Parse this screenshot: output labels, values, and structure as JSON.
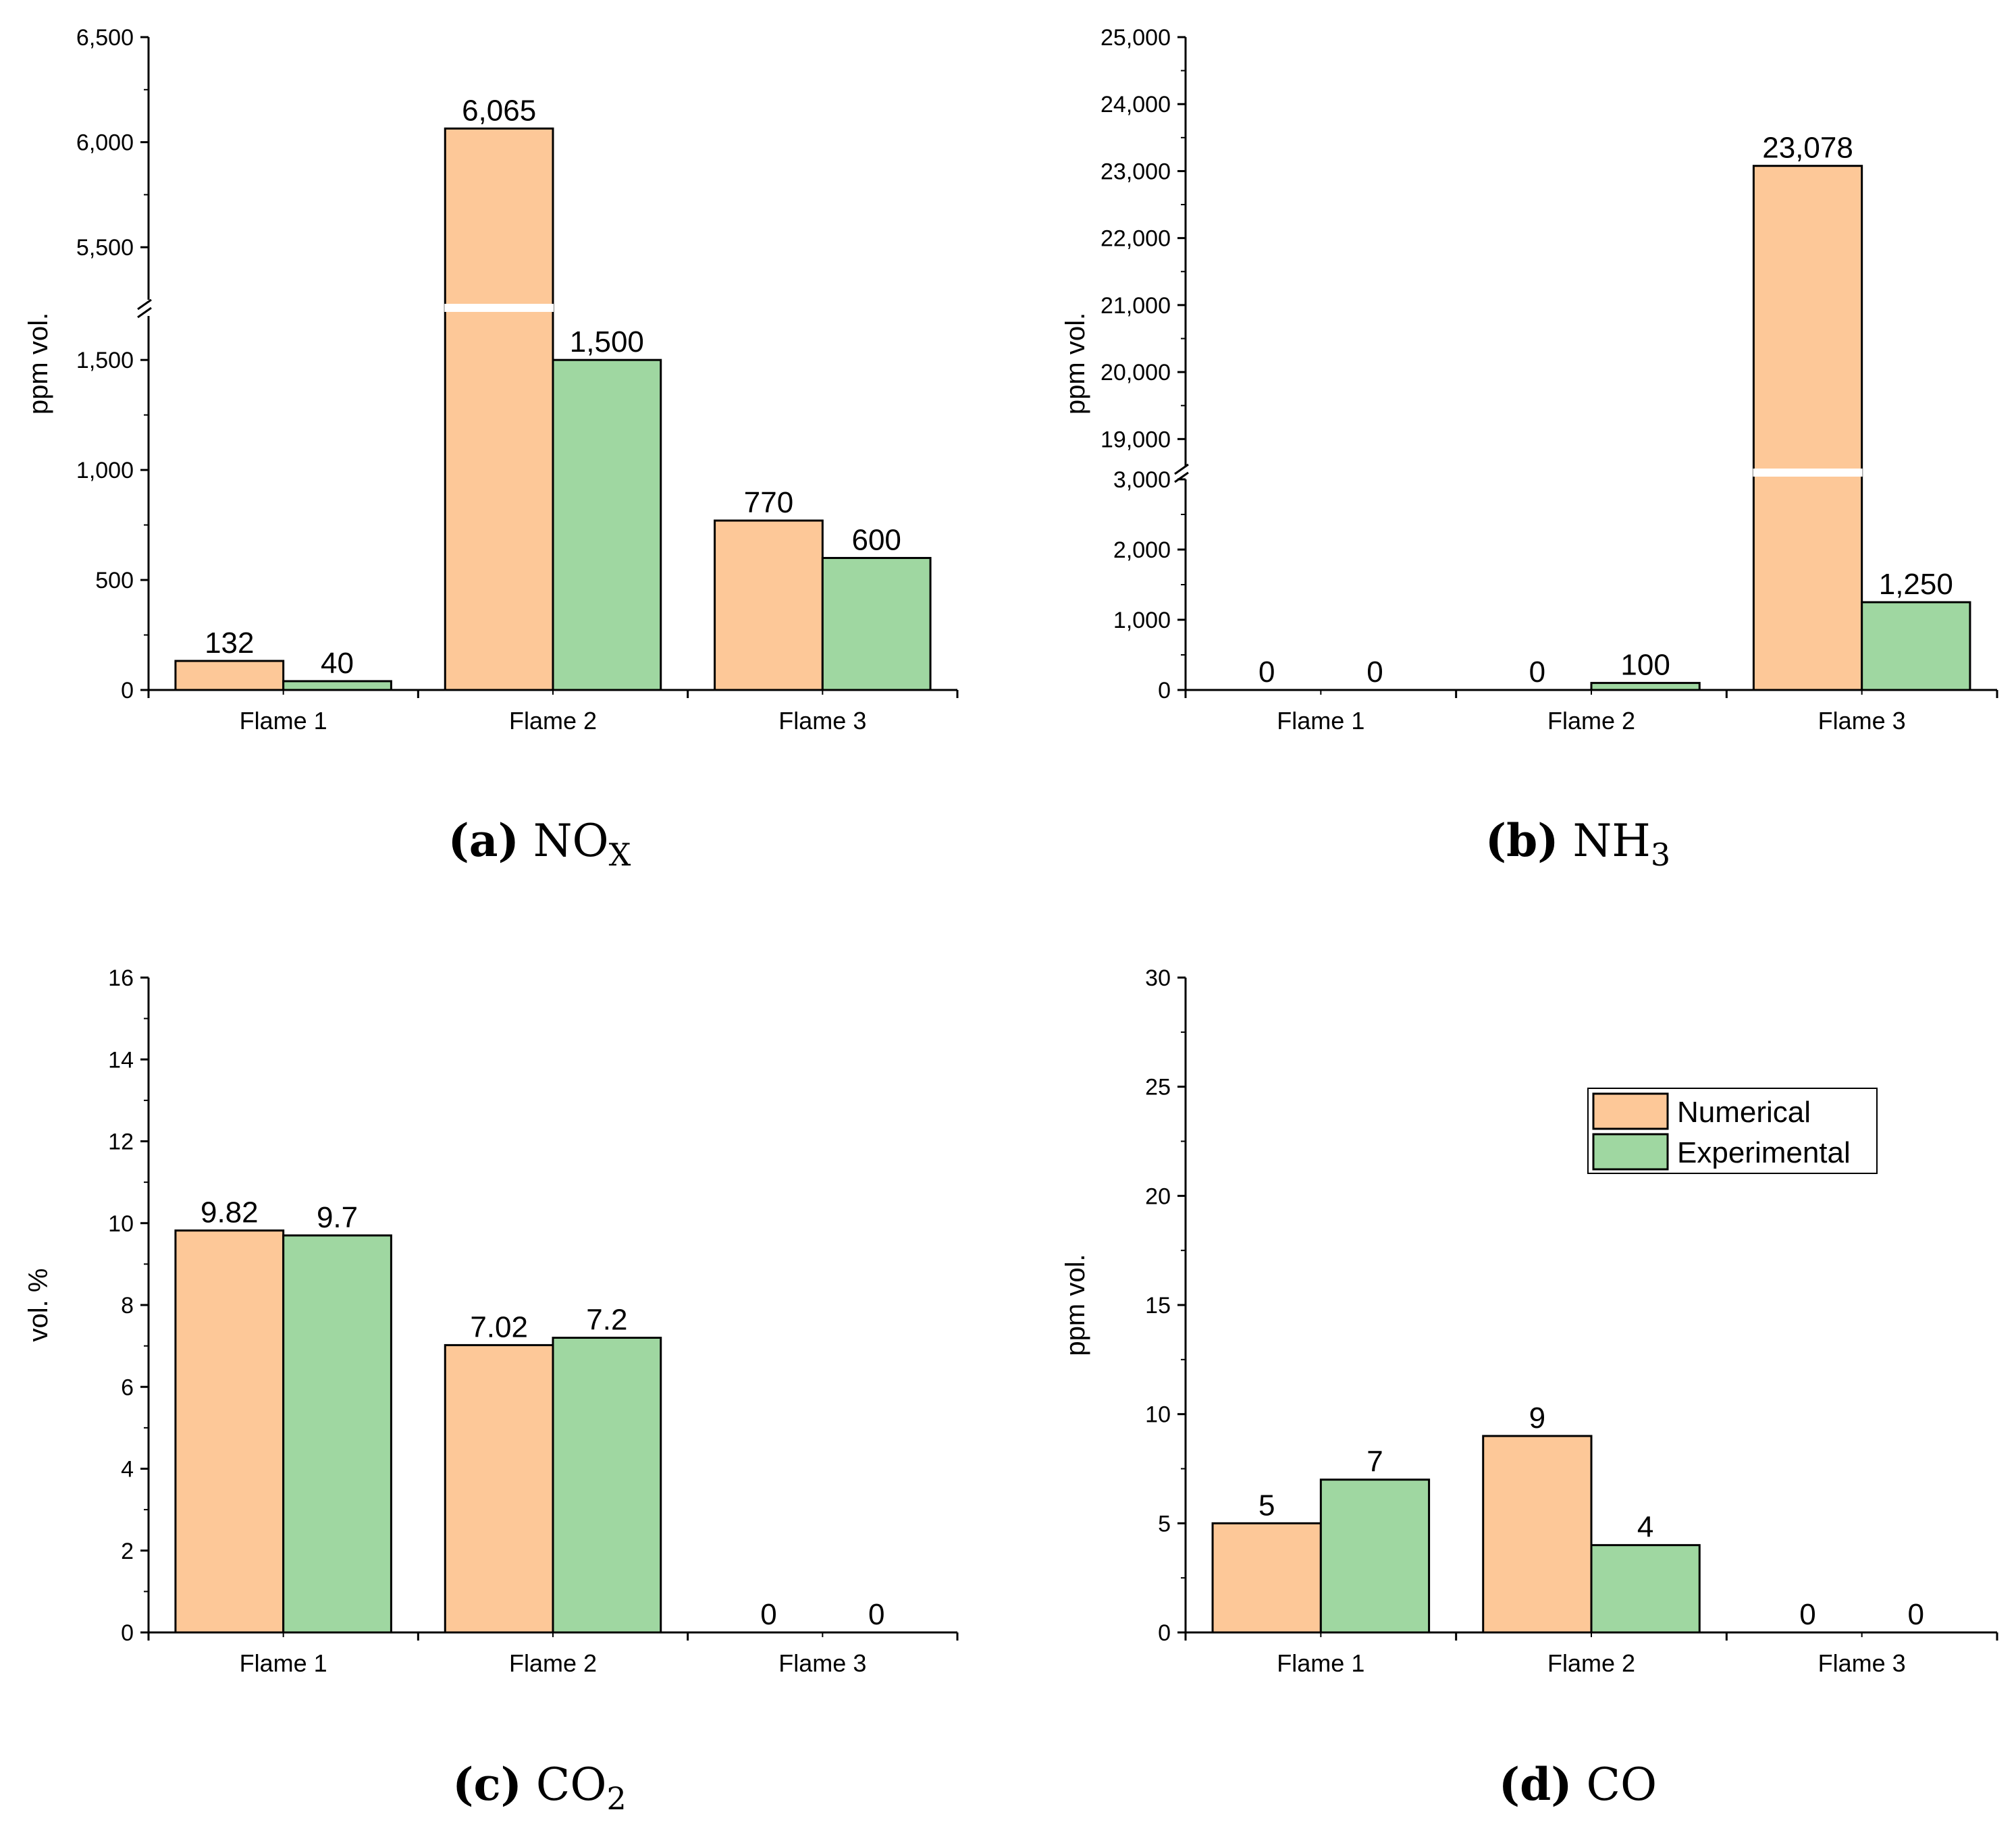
{
  "colors": {
    "numerical": "#FDC898",
    "experimental": "#9FD7A1",
    "stroke": "#000000",
    "break": "#ffffff"
  },
  "legend": {
    "numerical": "Numerical",
    "experimental": "Experimental"
  },
  "chart_data": [
    {
      "id": "a",
      "type": "bar",
      "caption_letter": "(a)",
      "caption_species": "NO",
      "caption_sub": "X",
      "ylabel": "ppm vol.",
      "categories": [
        "Flame 1",
        "Flame 2",
        "Flame 3"
      ],
      "series": [
        {
          "name": "Numerical",
          "values": [
            132,
            6065,
            770
          ],
          "labels": [
            "132",
            "6,065",
            "770"
          ]
        },
        {
          "name": "Experimental",
          "values": [
            40,
            1500,
            600
          ],
          "labels": [
            "40",
            "1,500",
            "600"
          ]
        }
      ],
      "axis_break": true,
      "lower_range": [
        0,
        1700
      ],
      "upper_range": [
        5250,
        6500
      ],
      "lower_ticks": [
        {
          "v": 0,
          "t": "0"
        },
        {
          "v": 500,
          "t": "500"
        },
        {
          "v": 1000,
          "t": "1,000"
        },
        {
          "v": 1500,
          "t": "1,500"
        }
      ],
      "upper_ticks": [
        {
          "v": 5500,
          "t": "5,500"
        },
        {
          "v": 6000,
          "t": "6,000"
        },
        {
          "v": 6500,
          "t": "6,500"
        }
      ]
    },
    {
      "id": "b",
      "type": "bar",
      "caption_letter": "(b)",
      "caption_species": "NH",
      "caption_sub": "3",
      "ylabel": "ppm vol.",
      "categories": [
        "Flame 1",
        "Flame 2",
        "Flame 3"
      ],
      "series": [
        {
          "name": "Numerical",
          "values": [
            0,
            0,
            23078
          ],
          "labels": [
            "0",
            "0",
            "23,078"
          ]
        },
        {
          "name": "Experimental",
          "values": [
            0,
            100,
            1250
          ],
          "labels": [
            "0",
            "100",
            "1,250"
          ]
        }
      ],
      "axis_break": true,
      "lower_range": [
        0,
        3000
      ],
      "upper_range": [
        18600,
        25000
      ],
      "lower_ticks": [
        {
          "v": 0,
          "t": "0"
        },
        {
          "v": 1000,
          "t": "1,000"
        },
        {
          "v": 2000,
          "t": "2,000"
        },
        {
          "v": 3000,
          "t": "3,000"
        }
      ],
      "upper_ticks": [
        {
          "v": 19000,
          "t": "19,000"
        },
        {
          "v": 20000,
          "t": "20,000"
        },
        {
          "v": 21000,
          "t": "21,000"
        },
        {
          "v": 22000,
          "t": "22,000"
        },
        {
          "v": 23000,
          "t": "23,000"
        },
        {
          "v": 24000,
          "t": "24,000"
        },
        {
          "v": 25000,
          "t": "25,000"
        }
      ]
    },
    {
      "id": "c",
      "type": "bar",
      "caption_letter": "(c)",
      "caption_species": "CO",
      "caption_sub": "2",
      "ylabel": "vol. %",
      "categories": [
        "Flame 1",
        "Flame 2",
        "Flame 3"
      ],
      "series": [
        {
          "name": "Numerical",
          "values": [
            9.82,
            7.02,
            0
          ],
          "labels": [
            "9.82",
            "7.02",
            "0"
          ]
        },
        {
          "name": "Experimental",
          "values": [
            9.7,
            7.2,
            0
          ],
          "labels": [
            "9.7",
            "7.2",
            "0"
          ]
        }
      ],
      "axis_break": false,
      "ylim": [
        0,
        16
      ],
      "ticks": [
        {
          "v": 0,
          "t": "0"
        },
        {
          "v": 2,
          "t": "2"
        },
        {
          "v": 4,
          "t": "4"
        },
        {
          "v": 6,
          "t": "6"
        },
        {
          "v": 8,
          "t": "8"
        },
        {
          "v": 10,
          "t": "10"
        },
        {
          "v": 12,
          "t": "12"
        },
        {
          "v": 14,
          "t": "14"
        },
        {
          "v": 16,
          "t": "16"
        }
      ]
    },
    {
      "id": "d",
      "type": "bar",
      "caption_letter": "(d)",
      "caption_species": "CO",
      "caption_sub": "",
      "ylabel": "ppm vol.",
      "categories": [
        "Flame 1",
        "Flame 2",
        "Flame 3"
      ],
      "series": [
        {
          "name": "Numerical",
          "values": [
            5,
            9,
            0
          ],
          "labels": [
            "5",
            "9",
            "0"
          ]
        },
        {
          "name": "Experimental",
          "values": [
            7,
            4,
            0
          ],
          "labels": [
            "7",
            "4",
            "0"
          ]
        }
      ],
      "axis_break": false,
      "ylim": [
        0,
        30
      ],
      "ticks": [
        {
          "v": 0,
          "t": "0"
        },
        {
          "v": 5,
          "t": "5"
        },
        {
          "v": 10,
          "t": "10"
        },
        {
          "v": 15,
          "t": "15"
        },
        {
          "v": 20,
          "t": "20"
        },
        {
          "v": 25,
          "t": "25"
        },
        {
          "v": 30,
          "t": "30"
        }
      ],
      "legend_placement": "top-right"
    }
  ]
}
